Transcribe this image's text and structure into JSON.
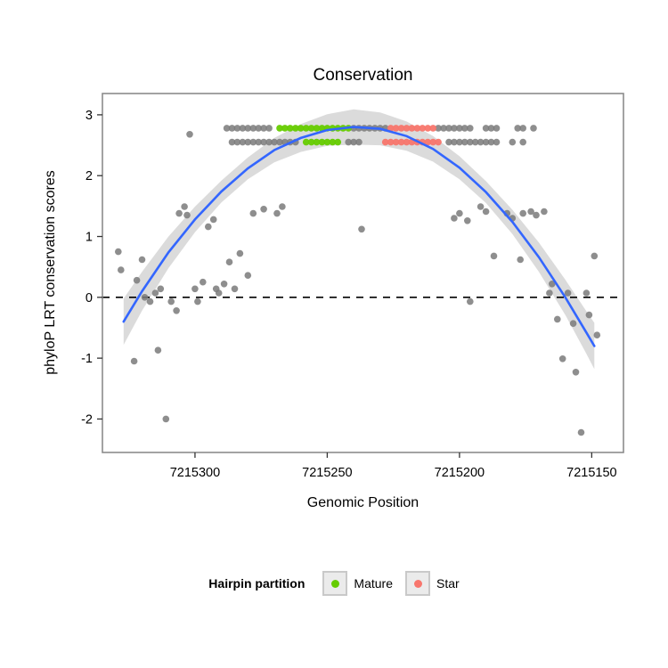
{
  "chart_data": {
    "type": "scatter",
    "title": "Conservation",
    "xlabel": "Genomic Position",
    "ylabel": "phyloP LRT conservation scores",
    "x_ticks": [
      7215300,
      7215250,
      7215200,
      7215150
    ],
    "y_ticks": [
      3,
      2,
      1,
      0,
      -1,
      -2
    ],
    "x_range": [
      7215335,
      7215138
    ],
    "y_range": [
      3.35,
      -2.55
    ],
    "x_axis_reversed": true,
    "grid": false,
    "hline_y": 0,
    "colors": {
      "point": "#7a7a7a",
      "mature": "#66cc00",
      "star": "#f8766d",
      "smooth": "#3366ff",
      "ribbon": "#8f8f8f",
      "panel_border": "#8c8c8c",
      "hline": "#000000"
    },
    "legend": {
      "title": "Hairpin partition",
      "position": "bottom",
      "items": [
        {
          "label": "Mature",
          "color_key": "mature"
        },
        {
          "label": "Star",
          "color_key": "star"
        }
      ]
    },
    "points": [
      [
        7215288,
        2.78,
        "g"
      ],
      [
        7215286,
        2.78,
        "g"
      ],
      [
        7215284,
        2.78,
        "g"
      ],
      [
        7215282,
        2.78,
        "g"
      ],
      [
        7215280,
        2.78,
        "g"
      ],
      [
        7215278,
        2.78,
        "g"
      ],
      [
        7215276,
        2.78,
        "g"
      ],
      [
        7215274,
        2.78,
        "g"
      ],
      [
        7215272,
        2.78,
        "g"
      ],
      [
        7215268,
        2.78,
        "m"
      ],
      [
        7215266,
        2.78,
        "m"
      ],
      [
        7215264,
        2.78,
        "m"
      ],
      [
        7215262,
        2.78,
        "m"
      ],
      [
        7215260,
        2.78,
        "m"
      ],
      [
        7215258,
        2.78,
        "m"
      ],
      [
        7215256,
        2.78,
        "m"
      ],
      [
        7215254,
        2.78,
        "m"
      ],
      [
        7215252,
        2.78,
        "m"
      ],
      [
        7215250,
        2.78,
        "m"
      ],
      [
        7215248,
        2.78,
        "m"
      ],
      [
        7215246,
        2.78,
        "m"
      ],
      [
        7215244,
        2.78,
        "m"
      ],
      [
        7215242,
        2.78,
        "m"
      ],
      [
        7215240,
        2.78,
        "g"
      ],
      [
        7215238,
        2.78,
        "g"
      ],
      [
        7215236,
        2.78,
        "g"
      ],
      [
        7215234,
        2.78,
        "g"
      ],
      [
        7215232,
        2.78,
        "g"
      ],
      [
        7215230,
        2.78,
        "g"
      ],
      [
        7215228,
        2.78,
        "g"
      ],
      [
        7215226,
        2.78,
        "s"
      ],
      [
        7215224,
        2.78,
        "s"
      ],
      [
        7215222,
        2.78,
        "s"
      ],
      [
        7215220,
        2.78,
        "s"
      ],
      [
        7215218,
        2.78,
        "s"
      ],
      [
        7215216,
        2.78,
        "s"
      ],
      [
        7215214,
        2.78,
        "s"
      ],
      [
        7215212,
        2.78,
        "s"
      ],
      [
        7215210,
        2.78,
        "s"
      ],
      [
        7215208,
        2.78,
        "g"
      ],
      [
        7215206,
        2.78,
        "g"
      ],
      [
        7215204,
        2.78,
        "g"
      ],
      [
        7215202,
        2.78,
        "g"
      ],
      [
        7215200,
        2.78,
        "g"
      ],
      [
        7215198,
        2.78,
        "g"
      ],
      [
        7215196,
        2.78,
        "g"
      ],
      [
        7215190,
        2.78,
        "g"
      ],
      [
        7215188,
        2.78,
        "g"
      ],
      [
        7215186,
        2.78,
        "g"
      ],
      [
        7215178,
        2.78,
        "g"
      ],
      [
        7215176,
        2.78,
        "g"
      ],
      [
        7215172,
        2.78,
        "g"
      ],
      [
        7215286,
        2.55,
        "g"
      ],
      [
        7215284,
        2.55,
        "g"
      ],
      [
        7215282,
        2.55,
        "g"
      ],
      [
        7215280,
        2.55,
        "g"
      ],
      [
        7215278,
        2.55,
        "g"
      ],
      [
        7215276,
        2.55,
        "g"
      ],
      [
        7215274,
        2.55,
        "g"
      ],
      [
        7215272,
        2.55,
        "g"
      ],
      [
        7215270,
        2.55,
        "g"
      ],
      [
        7215268,
        2.55,
        "g"
      ],
      [
        7215266,
        2.55,
        "g"
      ],
      [
        7215264,
        2.55,
        "g"
      ],
      [
        7215262,
        2.55,
        "g"
      ],
      [
        7215258,
        2.55,
        "m"
      ],
      [
        7215256,
        2.55,
        "m"
      ],
      [
        7215254,
        2.55,
        "m"
      ],
      [
        7215252,
        2.55,
        "m"
      ],
      [
        7215250,
        2.55,
        "m"
      ],
      [
        7215248,
        2.55,
        "m"
      ],
      [
        7215246,
        2.55,
        "m"
      ],
      [
        7215242,
        2.55,
        "g"
      ],
      [
        7215240,
        2.55,
        "g"
      ],
      [
        7215238,
        2.55,
        "g"
      ],
      [
        7215228,
        2.55,
        "s"
      ],
      [
        7215226,
        2.55,
        "s"
      ],
      [
        7215224,
        2.55,
        "s"
      ],
      [
        7215222,
        2.55,
        "s"
      ],
      [
        7215220,
        2.55,
        "s"
      ],
      [
        7215218,
        2.55,
        "s"
      ],
      [
        7215216,
        2.55,
        "s"
      ],
      [
        7215214,
        2.55,
        "s"
      ],
      [
        7215212,
        2.55,
        "s"
      ],
      [
        7215210,
        2.55,
        "s"
      ],
      [
        7215208,
        2.55,
        "s"
      ],
      [
        7215204,
        2.55,
        "g"
      ],
      [
        7215202,
        2.55,
        "g"
      ],
      [
        7215200,
        2.55,
        "g"
      ],
      [
        7215198,
        2.55,
        "g"
      ],
      [
        7215196,
        2.55,
        "g"
      ],
      [
        7215194,
        2.55,
        "g"
      ],
      [
        7215192,
        2.55,
        "g"
      ],
      [
        7215190,
        2.55,
        "g"
      ],
      [
        7215188,
        2.55,
        "g"
      ],
      [
        7215186,
        2.55,
        "g"
      ],
      [
        7215180,
        2.55,
        "g"
      ],
      [
        7215176,
        2.55,
        "g"
      ],
      [
        7215329,
        0.75,
        "g"
      ],
      [
        7215328,
        0.45,
        "g"
      ],
      [
        7215323,
        -1.05,
        "g"
      ],
      [
        7215322,
        0.28,
        "g"
      ],
      [
        7215320,
        0.62,
        "g"
      ],
      [
        7215319,
        0.0,
        "g"
      ],
      [
        7215317,
        -0.07,
        "g"
      ],
      [
        7215315,
        0.07,
        "g"
      ],
      [
        7215314,
        -0.87,
        "g"
      ],
      [
        7215313,
        0.14,
        "g"
      ],
      [
        7215311,
        -2.0,
        "g"
      ],
      [
        7215309,
        -0.07,
        "g"
      ],
      [
        7215307,
        -0.22,
        "g"
      ],
      [
        7215306,
        1.38,
        "g"
      ],
      [
        7215304,
        1.49,
        "g"
      ],
      [
        7215303,
        1.35,
        "g"
      ],
      [
        7215302,
        2.68,
        "g"
      ],
      [
        7215300,
        0.14,
        "g"
      ],
      [
        7215299,
        -0.07,
        "g"
      ],
      [
        7215297,
        0.25,
        "g"
      ],
      [
        7215295,
        1.16,
        "g"
      ],
      [
        7215293,
        1.28,
        "g"
      ],
      [
        7215292,
        0.14,
        "g"
      ],
      [
        7215291,
        0.07,
        "g"
      ],
      [
        7215289,
        0.22,
        "g"
      ],
      [
        7215287,
        0.58,
        "g"
      ],
      [
        7215285,
        0.14,
        "g"
      ],
      [
        7215283,
        0.72,
        "g"
      ],
      [
        7215280,
        0.36,
        "g"
      ],
      [
        7215278,
        1.38,
        "g"
      ],
      [
        7215274,
        1.45,
        "g"
      ],
      [
        7215269,
        1.38,
        "g"
      ],
      [
        7215267,
        1.49,
        "g"
      ],
      [
        7215237,
        1.12,
        "g"
      ],
      [
        7215202,
        1.3,
        "g"
      ],
      [
        7215200,
        1.38,
        "g"
      ],
      [
        7215197,
        1.26,
        "g"
      ],
      [
        7215196,
        -0.07,
        "g"
      ],
      [
        7215192,
        1.49,
        "g"
      ],
      [
        7215190,
        1.41,
        "g"
      ],
      [
        7215187,
        0.68,
        "g"
      ],
      [
        7215182,
        1.38,
        "g"
      ],
      [
        7215180,
        1.3,
        "g"
      ],
      [
        7215177,
        0.62,
        "g"
      ],
      [
        7215176,
        1.38,
        "g"
      ],
      [
        7215173,
        1.41,
        "g"
      ],
      [
        7215171,
        1.35,
        "g"
      ],
      [
        7215168,
        1.41,
        "g"
      ],
      [
        7215166,
        0.07,
        "g"
      ],
      [
        7215165,
        0.22,
        "g"
      ],
      [
        7215163,
        -0.36,
        "g"
      ],
      [
        7215161,
        -1.01,
        "g"
      ],
      [
        7215159,
        0.07,
        "g"
      ],
      [
        7215157,
        -0.43,
        "g"
      ],
      [
        7215156,
        -1.23,
        "g"
      ],
      [
        7215154,
        -2.22,
        "g"
      ],
      [
        7215152,
        0.07,
        "g"
      ],
      [
        7215151,
        -0.29,
        "g"
      ],
      [
        7215149,
        0.68,
        "g"
      ],
      [
        7215148,
        -0.62,
        "g"
      ]
    ],
    "smooth": [
      [
        7215327,
        -0.4,
        0.38
      ],
      [
        7215320,
        0.1,
        0.32
      ],
      [
        7215310,
        0.74,
        0.26
      ],
      [
        7215300,
        1.28,
        0.21
      ],
      [
        7215290,
        1.74,
        0.18
      ],
      [
        7215280,
        2.12,
        0.18
      ],
      [
        7215270,
        2.42,
        0.2
      ],
      [
        7215260,
        2.62,
        0.23
      ],
      [
        7215250,
        2.75,
        0.26
      ],
      [
        7215240,
        2.8,
        0.29
      ],
      [
        7215230,
        2.77,
        0.27
      ],
      [
        7215220,
        2.65,
        0.24
      ],
      [
        7215210,
        2.44,
        0.21
      ],
      [
        7215200,
        2.13,
        0.19
      ],
      [
        7215190,
        1.73,
        0.18
      ],
      [
        7215180,
        1.24,
        0.2
      ],
      [
        7215170,
        0.66,
        0.24
      ],
      [
        7215160,
        0.0,
        0.29
      ],
      [
        7215152,
        -0.58,
        0.35
      ],
      [
        7215149,
        -0.8,
        0.38
      ]
    ]
  }
}
